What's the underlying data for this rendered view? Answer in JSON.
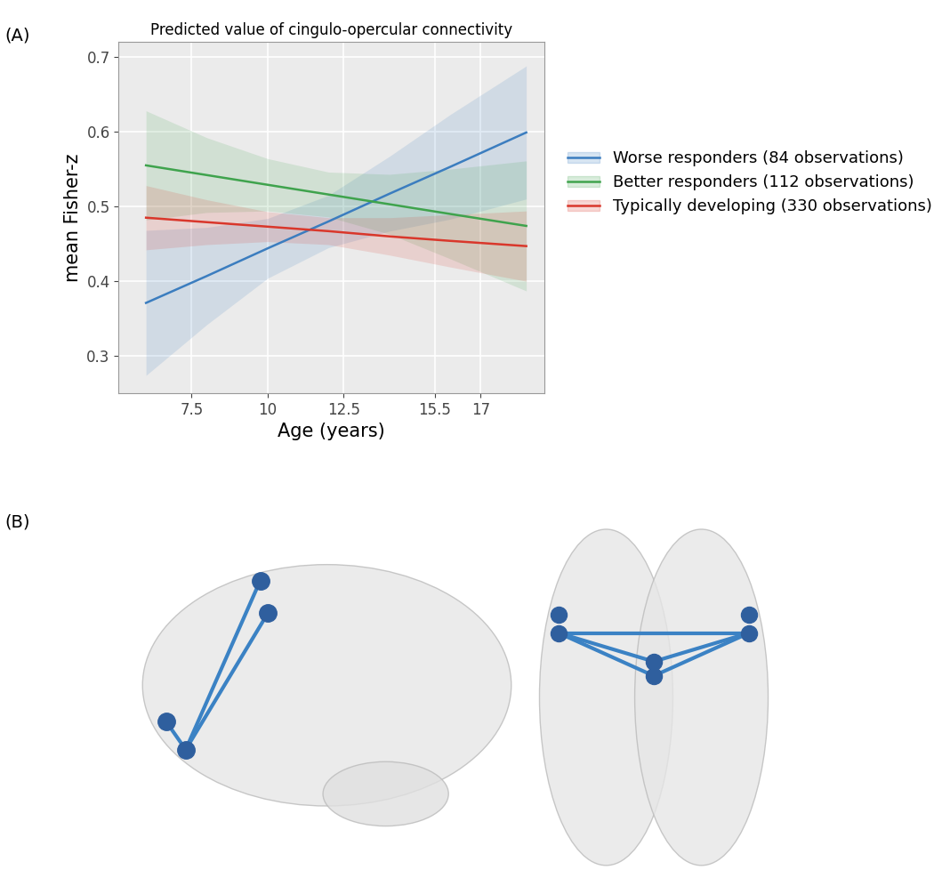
{
  "panel_labels": [
    "(A)",
    "(B)"
  ],
  "chart_data": {
    "type": "line",
    "title": "Predicted value of cingulo-opercular connectivity",
    "x_label": "Age (years)",
    "y_label": "mean Fisher-z",
    "x": [
      6,
      8,
      10,
      12,
      14,
      16,
      18.5
    ],
    "xlim": [
      5.1,
      19.1
    ],
    "xticks": [
      7.5,
      10,
      12.5,
      15.5,
      17
    ],
    "ylim": [
      0.25,
      0.72
    ],
    "yticks": [
      0.3,
      0.4,
      0.5,
      0.6,
      0.7
    ],
    "grid": true,
    "legend": "right",
    "series": [
      {
        "name": "Worse responders (84 observations)",
        "color": "#3b7dbf",
        "values": [
          0.371,
          0.407,
          0.444,
          0.48,
          0.517,
          0.553,
          0.599
        ],
        "lower": [
          0.274,
          0.342,
          0.404,
          0.445,
          0.467,
          0.483,
          0.51
        ],
        "upper": [
          0.468,
          0.472,
          0.484,
          0.515,
          0.567,
          0.623,
          0.688
        ]
      },
      {
        "name": "Better responders (112 observations)",
        "color": "#3fa34d",
        "values": [
          0.555,
          0.542,
          0.529,
          0.516,
          0.503,
          0.49,
          0.474
        ],
        "lower": [
          0.482,
          0.492,
          0.494,
          0.486,
          0.463,
          0.43,
          0.387
        ],
        "upper": [
          0.628,
          0.592,
          0.564,
          0.546,
          0.543,
          0.55,
          0.561
        ]
      },
      {
        "name": "Typically developing (330 observations)",
        "color": "#d9372b",
        "values": [
          0.485,
          0.479,
          0.473,
          0.467,
          0.46,
          0.454,
          0.447
        ],
        "lower": [
          0.442,
          0.449,
          0.453,
          0.449,
          0.435,
          0.419,
          0.4
        ],
        "upper": [
          0.528,
          0.509,
          0.493,
          0.485,
          0.485,
          0.489,
          0.494
        ]
      }
    ]
  }
}
